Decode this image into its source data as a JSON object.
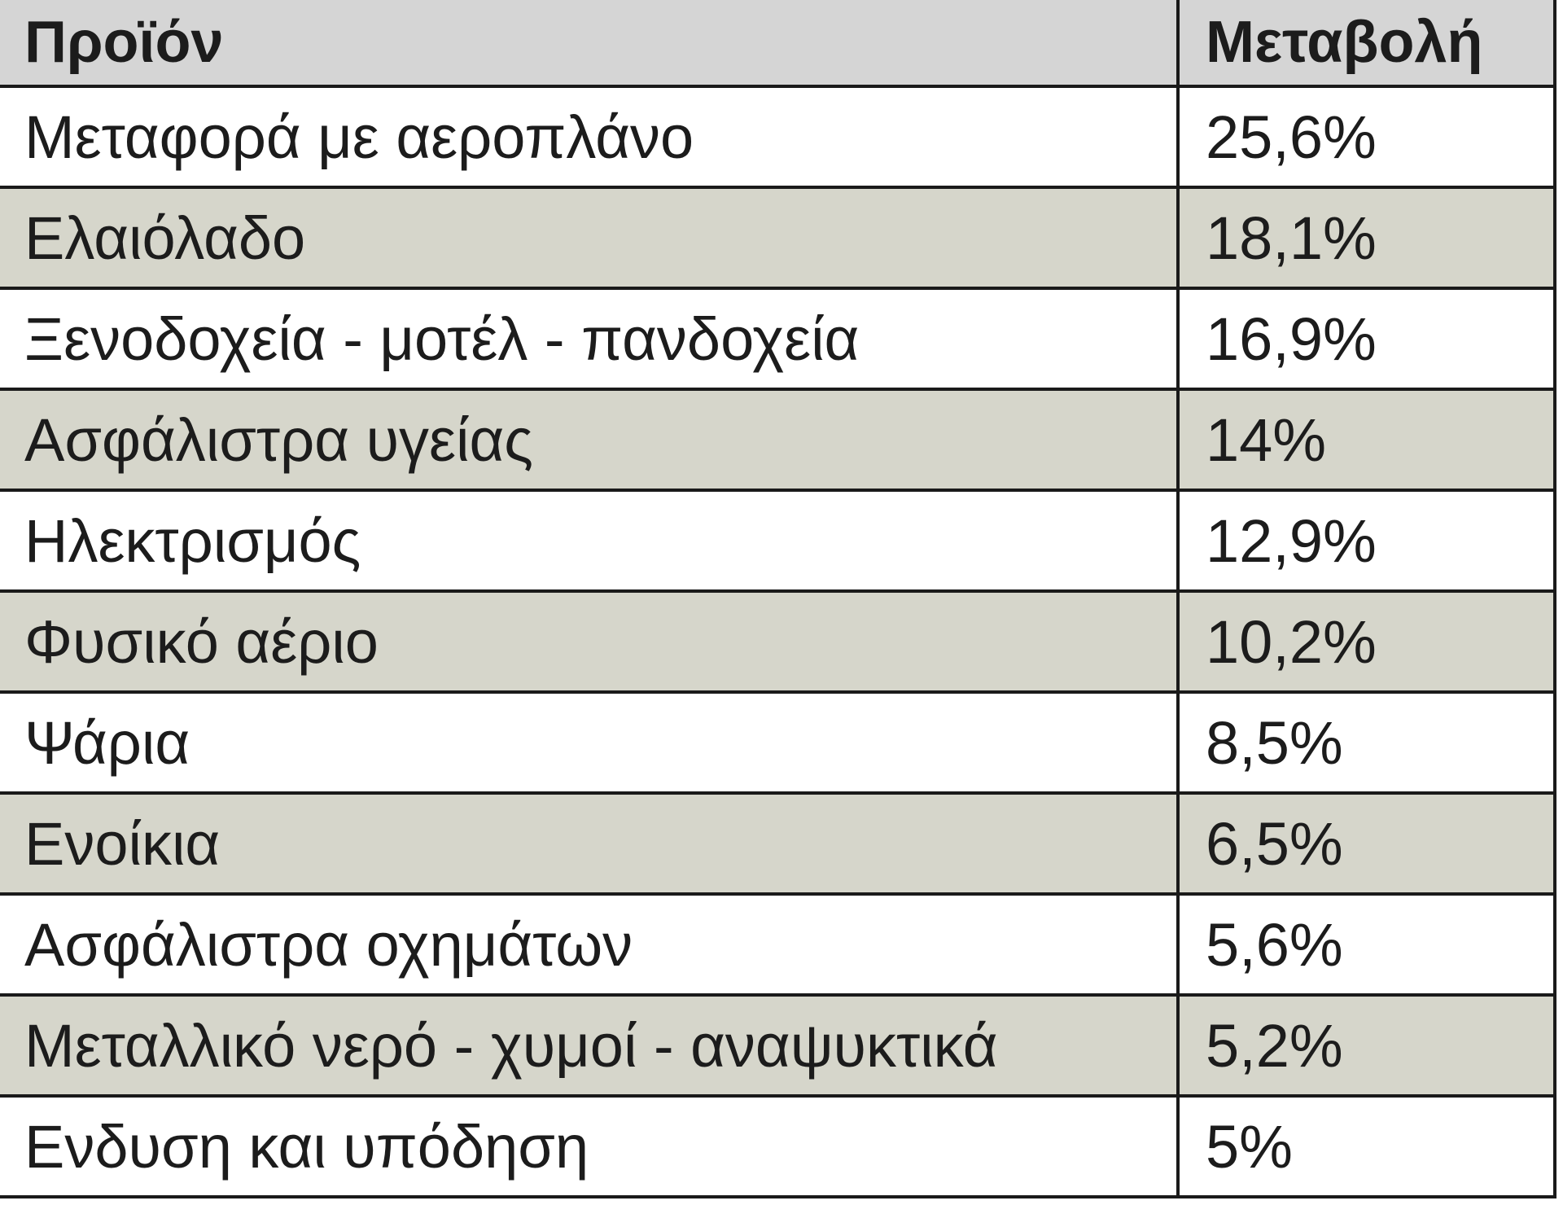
{
  "table": {
    "header": [
      "Προϊόν",
      "Μεταβολή"
    ],
    "rows": [
      [
        "Μεταφορά με αεροπλάνο",
        "25,6%"
      ],
      [
        "Ελαιόλαδο",
        "18,1%"
      ],
      [
        "Ξενοδοχεία - μοτέλ - πανδοχεία",
        "16,9%"
      ],
      [
        "Ασφάλιστρα υγείας",
        "14%"
      ],
      [
        "Ηλεκτρισμός",
        "12,9%"
      ],
      [
        "Φυσικό αέριο",
        "10,2%"
      ],
      [
        "Ψάρια",
        "8,5%"
      ],
      [
        "Ενοίκια",
        "6,5%"
      ],
      [
        "Ασφάλιστρα οχημάτων",
        "5,6%"
      ],
      [
        "Μεταλλικό νερό - χυμοί - αναψυκτικά",
        "5,2%"
      ],
      [
        "Ενδυση και υπόδηση",
        "5%"
      ]
    ]
  }
}
